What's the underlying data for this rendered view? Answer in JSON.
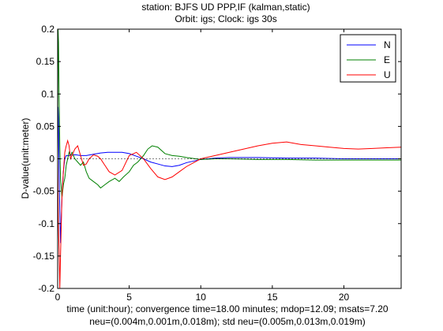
{
  "chart_data": {
    "type": "line",
    "title_lines": [
      "station: BJFS  UD PPP,IF (kalman,static)",
      "Orbit: igs;    Clock: igs 30s"
    ],
    "ylabel": "D-value(unit:meter)",
    "xlabel_lines": [
      "time (unit:hour);  convergence time=18.00  minutes; mdop=12.09; msats=7.20",
      "neu=(0.004m,0.001m,0.018m);  std neu=(0.005m,0.013m,0.019m)"
    ],
    "xlim": [
      0,
      24
    ],
    "ylim": [
      -0.2,
      0.2
    ],
    "x_ticks": [
      0,
      5,
      10,
      15,
      20
    ],
    "x_tick_labels": [
      "0",
      "5",
      "10",
      "15",
      "20"
    ],
    "y_ticks": [
      0.2,
      0.15,
      0.1,
      0.05,
      0,
      -0.05,
      -0.1,
      -0.15,
      -0.2
    ],
    "y_tick_labels": [
      "0.2",
      "0.15",
      "0.1",
      "0.05",
      "0",
      "-0.05",
      "-0.1",
      "-0.15",
      "-0.2"
    ],
    "grid": false,
    "legend_position": "top-right",
    "series": [
      {
        "name": "N",
        "color": "#0000ff",
        "x": [
          0,
          0.03,
          0.06,
          0.1,
          0.15,
          0.2,
          0.3,
          0.4,
          0.5,
          0.6,
          0.8,
          1.0,
          1.3,
          1.6,
          2.0,
          2.5,
          3.0,
          3.5,
          4.0,
          4.5,
          5.0,
          5.5,
          6.0,
          6.5,
          7.0,
          7.5,
          8.0,
          8.5,
          9.0,
          10.0,
          11.0,
          12.0,
          14.0,
          16.0,
          18.0,
          20.0,
          22.0,
          24.0
        ],
        "values": [
          0.0,
          0.08,
          0.06,
          -0.02,
          -0.08,
          -0.13,
          -0.06,
          -0.02,
          0.0,
          0.005,
          0.005,
          0.006,
          0.006,
          0.005,
          0.005,
          0.007,
          0.009,
          0.01,
          0.01,
          0.01,
          0.008,
          0.004,
          0.0,
          -0.005,
          -0.008,
          -0.011,
          -0.012,
          -0.01,
          -0.006,
          -0.001,
          0.001,
          0.002,
          0.002,
          0.001,
          0.001,
          0.0,
          0.0,
          0.0
        ]
      },
      {
        "name": "E",
        "color": "#008000",
        "x": [
          0,
          0.03,
          0.06,
          0.1,
          0.15,
          0.2,
          0.3,
          0.4,
          0.5,
          0.6,
          0.7,
          0.8,
          0.9,
          1.0,
          1.2,
          1.4,
          1.6,
          1.8,
          2.0,
          2.2,
          2.5,
          2.8,
          3.0,
          3.3,
          3.6,
          4.0,
          4.3,
          4.6,
          5.0,
          5.3,
          5.6,
          6.0,
          6.3,
          6.6,
          7.0,
          7.5,
          8.0,
          8.5,
          9.0,
          10.0,
          11.0,
          12.0,
          14.0,
          16.0,
          18.0,
          20.0,
          22.0,
          24.0
        ],
        "values": [
          0.0,
          0.2,
          0.18,
          0.1,
          0.02,
          -0.03,
          -0.06,
          -0.04,
          -0.03,
          -0.01,
          0.0,
          0.01,
          0.005,
          0.01,
          0.0,
          -0.005,
          -0.01,
          -0.005,
          -0.02,
          -0.03,
          -0.035,
          -0.04,
          -0.045,
          -0.04,
          -0.035,
          -0.03,
          -0.035,
          -0.028,
          -0.02,
          -0.01,
          -0.005,
          0.005,
          0.015,
          0.02,
          0.018,
          0.008,
          0.005,
          0.004,
          0.002,
          -0.001,
          0.0,
          0.0,
          -0.001,
          -0.001,
          -0.002,
          -0.002,
          -0.002,
          -0.002
        ]
      },
      {
        "name": "U",
        "color": "#ff0000",
        "x": [
          0,
          0.05,
          0.1,
          0.15,
          0.2,
          0.3,
          0.4,
          0.5,
          0.6,
          0.7,
          0.8,
          0.9,
          1.0,
          1.2,
          1.4,
          1.6,
          1.8,
          2.0,
          2.2,
          2.5,
          2.8,
          3.0,
          3.3,
          3.6,
          4.0,
          4.5,
          5.0,
          5.5,
          6.0,
          6.5,
          7.0,
          7.5,
          8.0,
          8.5,
          9.0,
          10.0,
          11.0,
          12.0,
          13.0,
          14.0,
          15.0,
          16.0,
          17.0,
          18.0,
          19.0,
          20.0,
          21.0,
          22.0,
          23.0,
          24.0
        ],
        "values": [
          0.0,
          -0.1,
          -0.14,
          -0.2,
          -0.15,
          -0.06,
          -0.02,
          0.01,
          0.02,
          0.028,
          0.02,
          0.0,
          0.005,
          0.015,
          0.02,
          0.005,
          -0.01,
          -0.008,
          0.0,
          0.006,
          0.004,
          0.0,
          -0.01,
          -0.02,
          -0.025,
          -0.018,
          0.005,
          0.01,
          0.0,
          -0.015,
          -0.028,
          -0.032,
          -0.028,
          -0.02,
          -0.012,
          0.0,
          0.005,
          0.01,
          0.015,
          0.02,
          0.024,
          0.026,
          0.022,
          0.02,
          0.018,
          0.016,
          0.015,
          0.016,
          0.017,
          0.018
        ]
      }
    ]
  }
}
